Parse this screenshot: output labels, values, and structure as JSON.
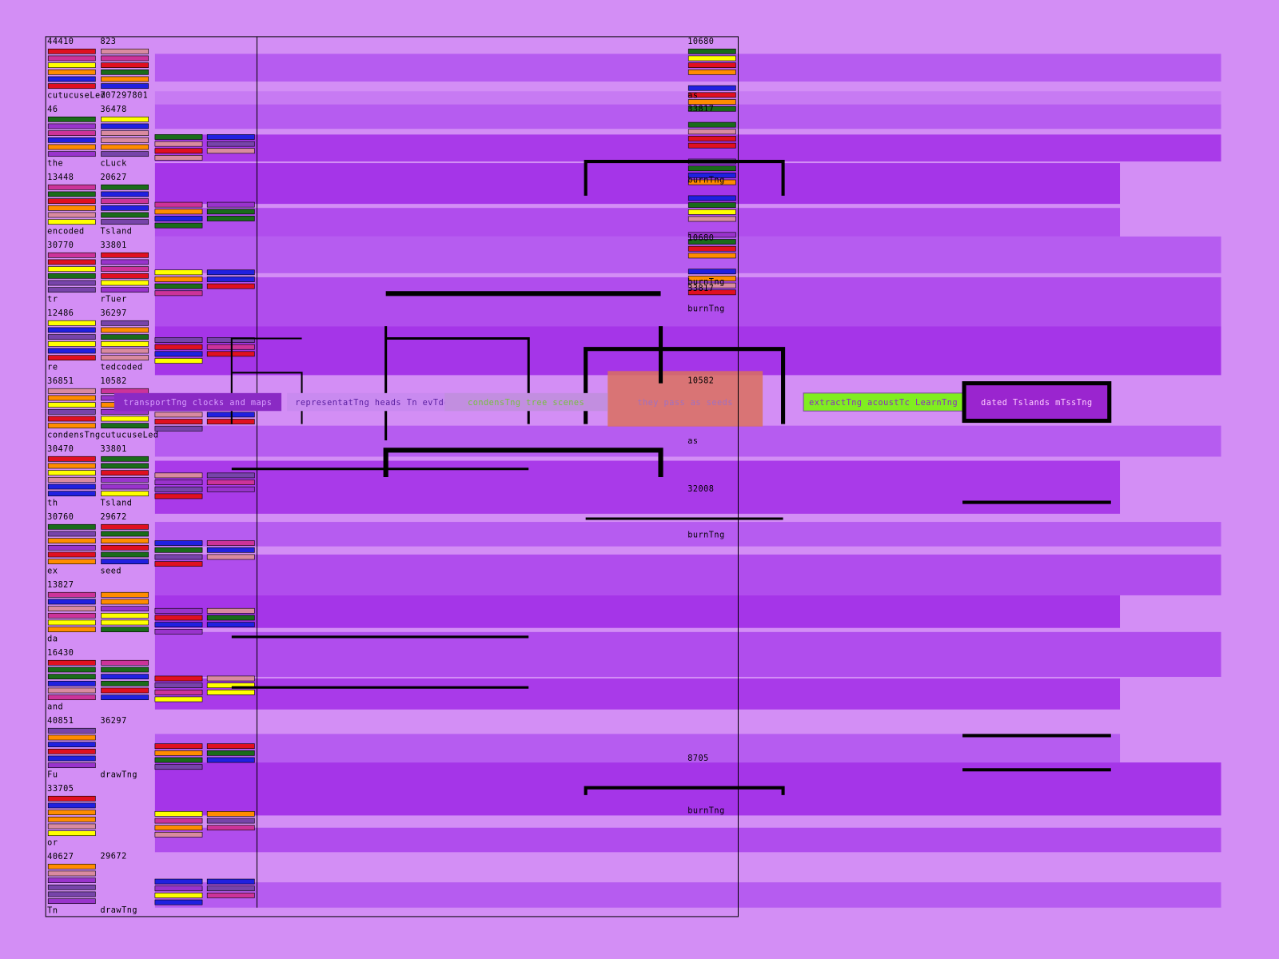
{
  "left_column": [
    {
      "value": "44410",
      "label": "cutucuseLed"
    },
    {
      "value": "46",
      "label": "the"
    },
    {
      "value": "13448",
      "label": "encoded"
    },
    {
      "value": "30770",
      "label": "tr"
    },
    {
      "value": "12486",
      "label": "re"
    },
    {
      "value": "36851",
      "label": "condensTng"
    },
    {
      "value": "30470",
      "label": "th"
    },
    {
      "value": "30760",
      "label": "ex"
    },
    {
      "value": "13827",
      "label": "da"
    },
    {
      "value": "16430",
      "label": "and"
    },
    {
      "value": "40851",
      "label": "Fu"
    },
    {
      "value": "33705",
      "label": "or"
    },
    {
      "value": "40627",
      "label": "Tn"
    }
  ],
  "second_column": [
    {
      "value": "823",
      "label": "707297801"
    },
    {
      "value": "36478",
      "label": "cLuck"
    },
    {
      "value": "20627",
      "label": "Tsland"
    },
    {
      "value": "33801",
      "label": "rTuer"
    },
    {
      "value": "36297",
      "label": "tedcoded"
    },
    {
      "value": "10582",
      "label": "cutucuseLed"
    },
    {
      "value": "33801",
      "label": "Tsland"
    },
    {
      "value": "29672",
      "label": "seed"
    },
    {
      "value": "36297",
      "label": "drawTng"
    },
    {
      "value": "29672",
      "label": "drawTng"
    }
  ],
  "right_column": [
    {
      "value": "10680",
      "label": "as"
    },
    {
      "value": "33817",
      "label": "burnTng"
    },
    {
      "value": "10680",
      "label": "burnTng"
    },
    {
      "value": "33817",
      "label": "burnTng"
    },
    {
      "value": "10582",
      "label": "as"
    },
    {
      "value": "32008",
      "label": "burnTng"
    },
    {
      "value": "8705",
      "label": "burnTng"
    }
  ],
  "tags": [
    "transportTng clocks and maps",
    "representatTng heads Tn evTdence",
    "condensTng tree scenes",
    "they pass as seeds",
    "extractTng acoustTc LearnTng",
    "dated Tslands mTssTng"
  ]
}
